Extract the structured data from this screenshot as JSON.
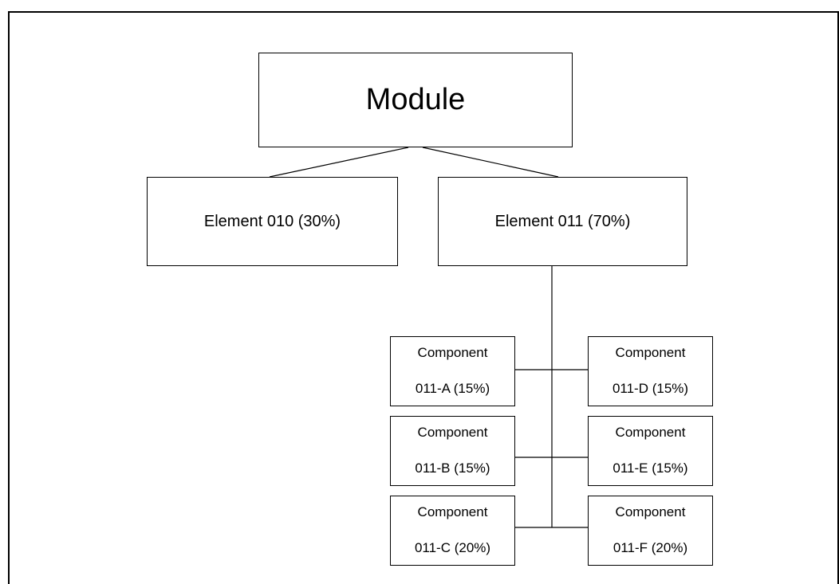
{
  "diagram": {
    "root": {
      "label": "Module"
    },
    "elements": [
      {
        "id": "010",
        "label": "Element 010 (30%)"
      },
      {
        "id": "011",
        "label": "Element 011 (70%)"
      }
    ],
    "components": [
      {
        "id": "011-A",
        "line1": "Component",
        "line2": "011-A (15%)"
      },
      {
        "id": "011-B",
        "line1": "Component",
        "line2": "011-B (15%)"
      },
      {
        "id": "011-C",
        "line1": "Component",
        "line2": "011-C (20%)"
      },
      {
        "id": "011-D",
        "line1": "Component",
        "line2": "011-D (15%)"
      },
      {
        "id": "011-E",
        "line1": "Component",
        "line2": "011-E (15%)"
      },
      {
        "id": "011-F",
        "line1": "Component",
        "line2": "011-F (20%)"
      }
    ]
  }
}
